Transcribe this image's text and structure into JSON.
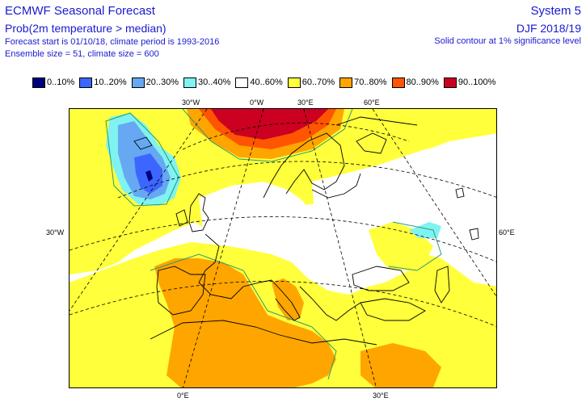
{
  "header": {
    "title": "ECMWF Seasonal Forecast",
    "subtitle": "Prob(2m temperature > median)",
    "forecast_info": "Forecast start is 01/10/18, climate period is 1993-2016",
    "ensemble_info": "Ensemble size = 51, climate size = 600",
    "system": "System 5",
    "season": "DJF 2018/19",
    "significance_note": "Solid contour at 1% significance level"
  },
  "legend": [
    {
      "label": "0..10%",
      "color": "#00007f"
    },
    {
      "label": "10..20%",
      "color": "#3b66ff"
    },
    {
      "label": "20..30%",
      "color": "#66a8f2"
    },
    {
      "label": "30..40%",
      "color": "#7ff2f2"
    },
    {
      "label": "40..60%",
      "color": "#ffffff"
    },
    {
      "label": "60..70%",
      "color": "#ffff3b"
    },
    {
      "label": "70..80%",
      "color": "#ffa500"
    },
    {
      "label": "80..90%",
      "color": "#ff5500"
    },
    {
      "label": "90..100%",
      "color": "#cc0020"
    }
  ],
  "ticks": {
    "top": [
      "30°W",
      "0°W",
      "30°E",
      "60°E"
    ],
    "left": "30°W",
    "right": "60°E",
    "bottom": [
      "0°E",
      "30°E"
    ]
  },
  "colors": {
    "text": "#1a1ad0",
    "coast": "#000000",
    "significance_contour": "#2a9a70",
    "graticule": "#000000"
  }
}
